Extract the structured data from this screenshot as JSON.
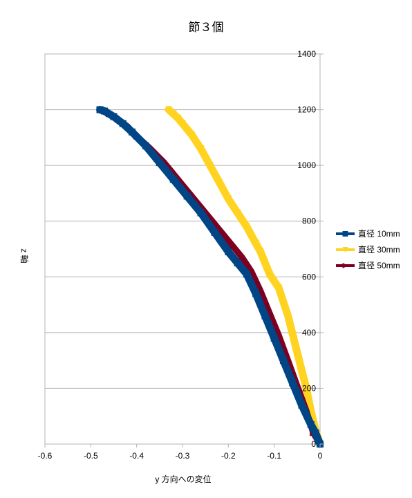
{
  "chart_data": {
    "type": "line",
    "title": "節３個",
    "xlabel": "y 方向への変位",
    "ylabel": "z 軸",
    "xlim": [
      -0.6,
      0
    ],
    "ylim": [
      0,
      1400
    ],
    "x_ticks": [
      -0.6,
      -0.5,
      -0.4,
      -0.3,
      -0.2,
      -0.1,
      0
    ],
    "x_tick_labels": [
      "-0.6",
      "-0.5",
      "-0.4",
      "-0.3",
      "-0.2",
      "-0.1",
      "0"
    ],
    "y_ticks": [
      0,
      200,
      400,
      600,
      800,
      1000,
      1200,
      1400
    ],
    "y_tick_labels": [
      "0",
      "200",
      "400",
      "600",
      "800",
      "1000",
      "1200",
      "1400"
    ],
    "grid": "horizontal",
    "legend_position": "right",
    "series": [
      {
        "name": "直径 10mm",
        "color": "#004586",
        "marker": "square",
        "x": [
          0,
          -0.01,
          -0.02,
          -0.04,
          -0.06,
          -0.08,
          -0.1,
          -0.12,
          -0.14,
          -0.16,
          -0.18,
          -0.2,
          -0.23,
          -0.26,
          -0.29,
          -0.32,
          -0.35,
          -0.38,
          -0.41,
          -0.43,
          -0.45,
          -0.47,
          -0.48
        ],
        "y": [
          0,
          40,
          70,
          140,
          220,
          300,
          380,
          460,
          540,
          610,
          650,
          690,
          760,
          830,
          890,
          950,
          1010,
          1070,
          1120,
          1150,
          1175,
          1195,
          1200
        ]
      },
      {
        "name": "直径 30mm",
        "color": "#ffd320",
        "marker": "triangle-down",
        "x": [
          0,
          -0.01,
          -0.02,
          -0.03,
          -0.05,
          -0.07,
          -0.09,
          -0.11,
          -0.12,
          -0.13,
          -0.14,
          -0.16,
          -0.18,
          -0.2,
          -0.22,
          -0.24,
          -0.26,
          -0.28,
          -0.3,
          -0.31,
          -0.32,
          -0.33
        ],
        "y": [
          0,
          50,
          120,
          200,
          330,
          460,
          560,
          610,
          650,
          690,
          720,
          780,
          830,
          880,
          940,
          1000,
          1060,
          1110,
          1150,
          1170,
          1185,
          1200
        ]
      },
      {
        "name": "直径 50mm",
        "color": "#7e0021",
        "marker": "triangle-right",
        "x": [
          0,
          -0.015,
          -0.03,
          -0.05,
          -0.07,
          -0.09,
          -0.11,
          -0.13,
          -0.15,
          -0.17,
          -0.19,
          -0.22,
          -0.25,
          -0.28,
          -0.31,
          -0.34,
          -0.37,
          -0.4,
          -0.42,
          -0.44,
          -0.46,
          -0.48
        ],
        "y": [
          0,
          40,
          120,
          210,
          300,
          390,
          470,
          550,
          620,
          670,
          710,
          770,
          830,
          890,
          950,
          1010,
          1060,
          1105,
          1140,
          1165,
          1185,
          1200
        ]
      }
    ],
    "draw_order": [
      1,
      2,
      0
    ]
  }
}
